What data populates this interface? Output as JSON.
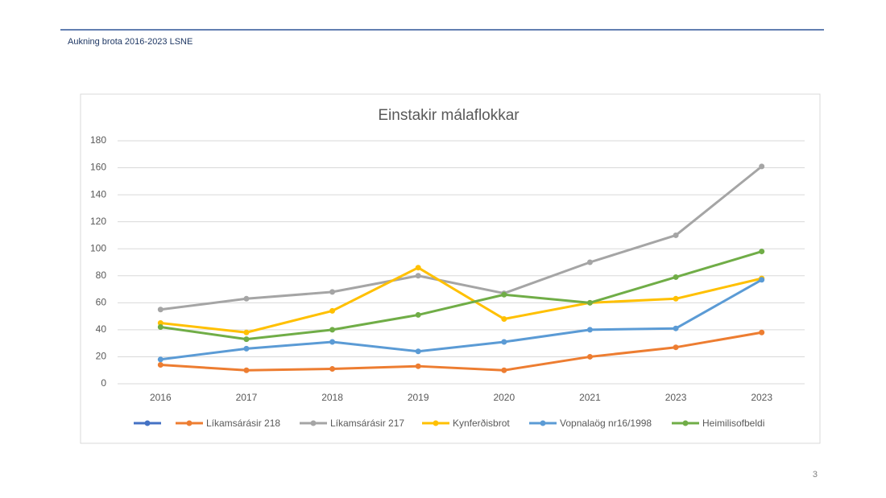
{
  "header": {
    "title": "Aukning brota 2016-2023 LSNE"
  },
  "page_number": "3",
  "chart_data": {
    "type": "line",
    "title": "Einstakir málaflokkar",
    "categories": [
      "2016",
      "2017",
      "2018",
      "2019",
      "2020",
      "2021",
      "2023",
      "2023"
    ],
    "series": [
      {
        "name": "Líkamsárásir 218",
        "color": "#ED7D31",
        "values": [
          14,
          10,
          11,
          13,
          10,
          20,
          27,
          38
        ]
      },
      {
        "name": "Líkamsárásir 217",
        "color": "#A5A5A5",
        "values": [
          55,
          63,
          68,
          80,
          67,
          90,
          110,
          161
        ]
      },
      {
        "name": "Kynferðisbrot",
        "color": "#FFC000",
        "values": [
          45,
          38,
          54,
          86,
          48,
          60,
          63,
          78
        ]
      },
      {
        "name": "Vopnalaög nr16/1998",
        "color": "#5B9BD5",
        "values": [
          18,
          26,
          31,
          24,
          31,
          40,
          41,
          77
        ]
      },
      {
        "name": "Heimilisofbeldi",
        "color": "#70AD47",
        "values": [
          42,
          33,
          40,
          51,
          66,
          60,
          79,
          98
        ]
      }
    ],
    "ylim": [
      0,
      180
    ],
    "yticks": [
      0,
      20,
      40,
      60,
      80,
      100,
      120,
      140,
      160,
      180
    ],
    "grid": true,
    "legend": "bottom"
  }
}
